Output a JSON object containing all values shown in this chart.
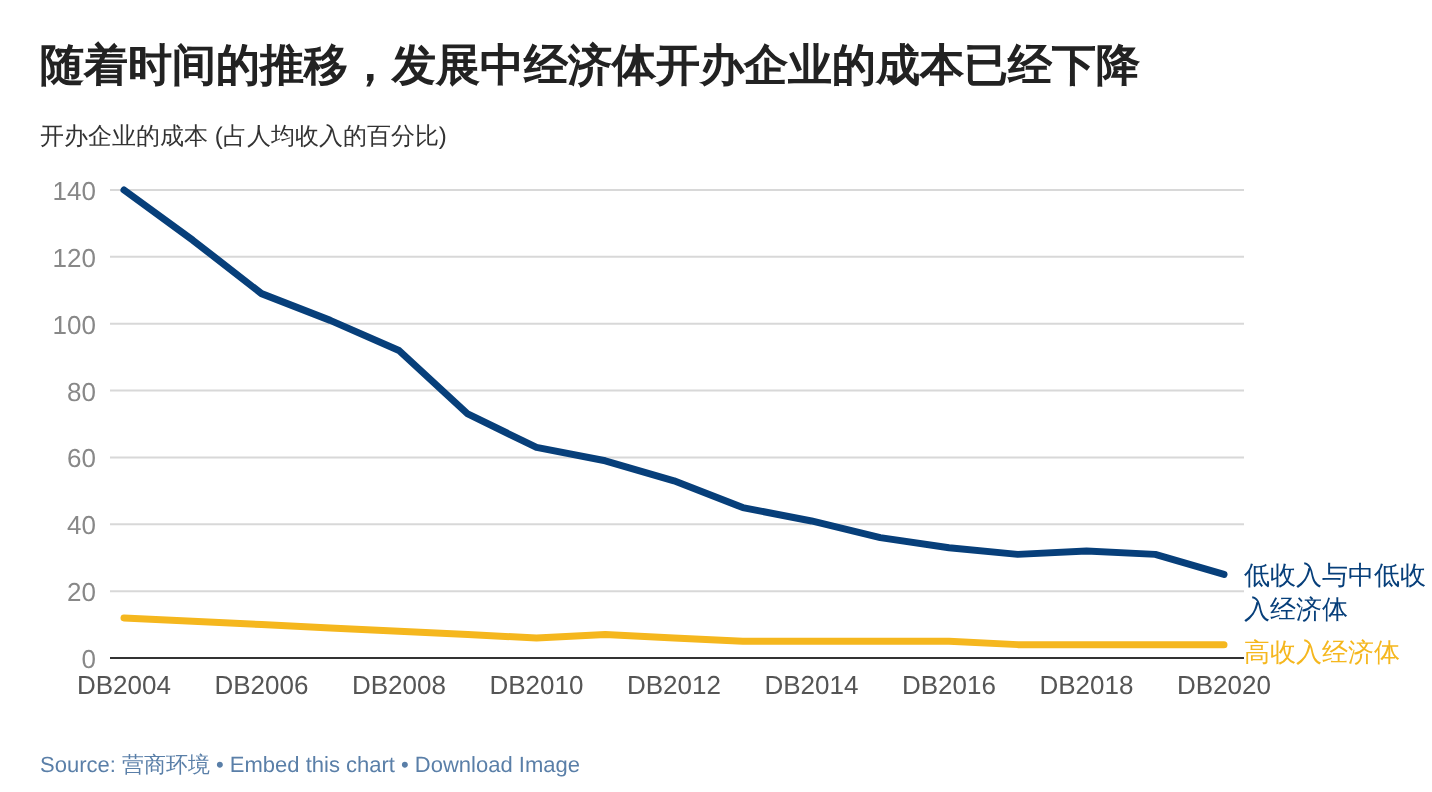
{
  "chart_data": {
    "type": "line",
    "title": "随着时间的推移，发展中经济体开办企业的成本已经下降",
    "ylabel": "开办企业的成本 (占人均收入的百分比)",
    "categories": [
      "DB2004",
      null,
      "DB2006",
      null,
      "DB2008",
      null,
      "DB2010",
      null,
      "DB2012",
      null,
      "DB2014",
      null,
      "DB2016",
      null,
      "DB2018",
      null,
      "DB2020"
    ],
    "series": [
      {
        "name": "低收入与中低收入经济体",
        "color": "#073f7a",
        "values": [
          140,
          125,
          109,
          101,
          92,
          73,
          63,
          59,
          53,
          45,
          41,
          36,
          33,
          31,
          32,
          31,
          25
        ]
      },
      {
        "name": "高收入经济体",
        "color": "#f5b71e",
        "values": [
          12,
          11,
          10,
          9,
          8,
          7,
          6,
          7,
          6,
          5,
          5,
          5,
          5,
          4,
          4,
          4,
          4
        ]
      }
    ],
    "ylim": [
      0,
      140
    ],
    "yticks": [
      0,
      20,
      40,
      60,
      80,
      100,
      120,
      140
    ],
    "grid": "y",
    "legend": false,
    "marker": "none",
    "line_style": "solid",
    "annotations": [
      "Source: 营商环境 • Embed this chart • Download Image"
    ]
  }
}
